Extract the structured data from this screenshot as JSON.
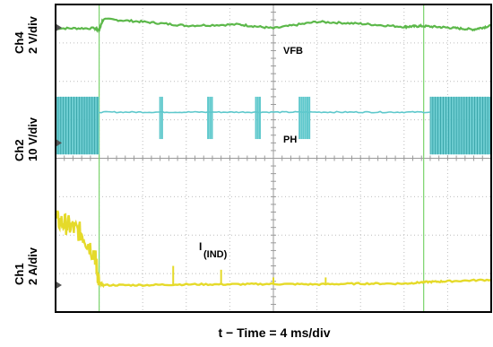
{
  "chart_data": {
    "type": "line",
    "title": "",
    "xlabel": "t − Time = 4 ms/div",
    "time_per_div_ms": 4,
    "x_divisions": 10,
    "y_divisions": 8,
    "grid": true,
    "x_unit": "div",
    "channel_labels": [
      {
        "id": "Ch4",
        "name": "Ch4",
        "scale": "2 V/div"
      },
      {
        "id": "Ch2",
        "name": "Ch2",
        "scale": "10 V/div"
      },
      {
        "id": "Ch1",
        "name": "Ch1",
        "scale": "2 A/div"
      }
    ],
    "trace_labels": {
      "vfb": "VFB",
      "ph": "PH",
      "iind_main": "I",
      "iind_sub": "(IND)"
    },
    "series": [
      {
        "id": "vfb",
        "channel": "Ch4",
        "color": "#5cb84a",
        "x": [
          0,
          0.9,
          1.0,
          1.1,
          2.0,
          3.0,
          4.2,
          5.0,
          6.0,
          7.0,
          8.0,
          8.4,
          9.0,
          9.6,
          10
        ],
        "y": [
          7.38,
          7.38,
          7.35,
          7.62,
          7.55,
          7.45,
          7.48,
          7.38,
          7.55,
          7.5,
          7.42,
          7.44,
          7.4,
          7.35,
          7.45
        ]
      },
      {
        "id": "ph",
        "channel": "Ch2",
        "color": "#5ec8cc",
        "bursts": [
          [
            0,
            1.0
          ],
          [
            8.6,
            10
          ]
        ],
        "burst_high": 5.6,
        "burst_low": 4.1,
        "idle_level": 5.2,
        "spikes": [
          [
            2.4,
            2
          ],
          [
            3.5,
            3
          ],
          [
            4.6,
            3
          ],
          [
            5.6,
            6
          ]
        ],
        "spike_high": 5.6,
        "spike_low": 4.5
      },
      {
        "id": "iind",
        "channel": "Ch1",
        "color": "#e5da2a",
        "x": [
          0,
          0.3,
          0.6,
          0.9,
          1.0,
          1.1,
          2.0,
          3.0,
          4.0,
          5.0,
          6.0,
          7.0,
          8.0,
          8.5,
          9.0,
          10
        ],
        "y": [
          2.4,
          2.25,
          2.05,
          1.5,
          0.75,
          0.7,
          0.7,
          0.72,
          0.72,
          0.73,
          0.72,
          0.74,
          0.74,
          0.78,
          0.8,
          0.84
        ],
        "spikes": [
          [
            2.7,
            1.2
          ],
          [
            3.8,
            1.1
          ],
          [
            5.0,
            0.9
          ],
          [
            6.2,
            0.9
          ]
        ]
      }
    ],
    "cursors_x": [
      1.0,
      8.45
    ],
    "markers": [
      {
        "name": "ch4-level-marker",
        "level": 7.4
      },
      {
        "name": "ch2-level-marker",
        "level": 4.4
      },
      {
        "name": "ch1-level-marker",
        "level": 0.7
      }
    ]
  }
}
